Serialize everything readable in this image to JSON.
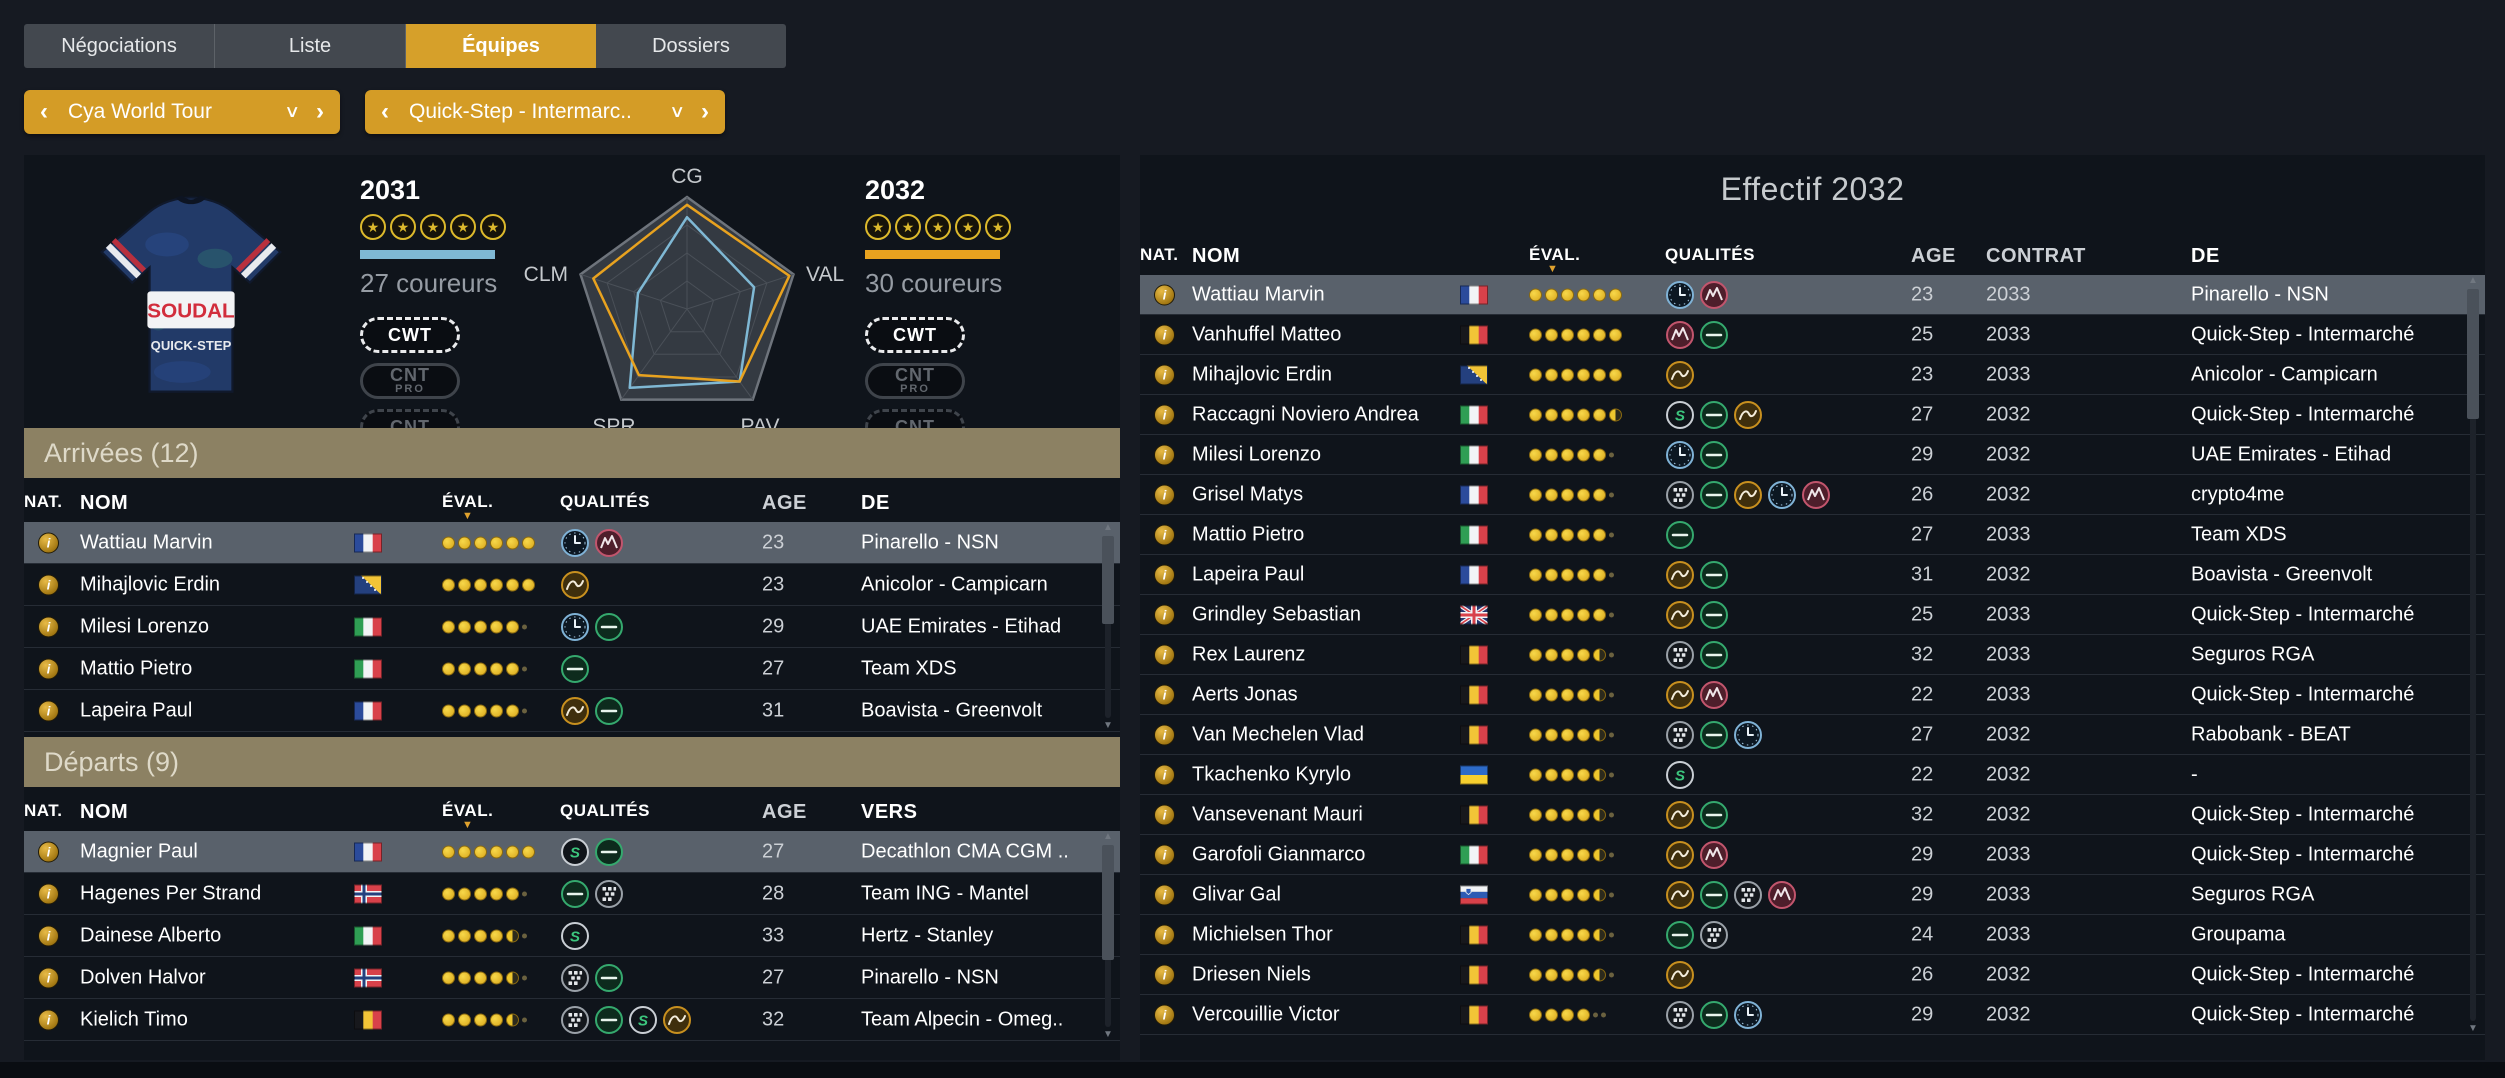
{
  "tabs": [
    {
      "label": "Négociations",
      "active": false
    },
    {
      "label": "Liste",
      "active": false
    },
    {
      "label": "Équipes",
      "active": true
    },
    {
      "label": "Dossiers",
      "active": false
    }
  ],
  "selectors": {
    "division": "Cya World Tour",
    "team": "Quick-Step - Intermarc..",
    "prev_glyph": "‹",
    "next_glyph": "›",
    "chevron_glyph": "∨"
  },
  "team_overview": {
    "jersey": {
      "brand1": "SOUDAL",
      "brand2": "QUICK-STEP"
    },
    "seasons": [
      {
        "id": "season-a",
        "year": "2031",
        "stars": 5,
        "riders": "27 coureurs",
        "accent": "#7fb8d4",
        "badges": [
          {
            "label": "CWT",
            "sub": "",
            "style": "on"
          },
          {
            "label": "CNT",
            "sub": "PRO",
            "style": "pro"
          },
          {
            "label": "CNT",
            "sub": "",
            "style": "off"
          }
        ]
      },
      {
        "id": "season-b",
        "year": "2032",
        "stars": 5,
        "riders": "30 coureurs",
        "accent": "#e8a21f",
        "badges": [
          {
            "label": "CWT",
            "sub": "",
            "style": "on"
          },
          {
            "label": "CNT",
            "sub": "PRO",
            "style": "pro"
          },
          {
            "label": "CNT",
            "sub": "",
            "style": "off"
          }
        ]
      }
    ]
  },
  "chart_data": {
    "type": "radar",
    "axes": [
      "CG",
      "VAL",
      "PAV",
      "SPR",
      "CLM"
    ],
    "levels": 4,
    "series": [
      {
        "name": "2031",
        "color": "#7fb8d4",
        "values": [
          0.82,
          0.63,
          0.8,
          0.87,
          0.46
        ]
      },
      {
        "name": "2032",
        "color": "#e8a21f",
        "values": [
          0.93,
          0.96,
          0.8,
          0.73,
          0.88
        ]
      }
    ]
  },
  "arrivals": {
    "title": "Arrivées (12)",
    "columns": [
      "NOM",
      "NAT.",
      "ÉVAL.",
      "QUALITÉS",
      "AGE",
      "DE"
    ],
    "rows": [
      {
        "name": "Wattiau Marvin",
        "nat": "fr",
        "eval": 6,
        "qual": [
          "chrono",
          "montagne"
        ],
        "age": "23",
        "team": "Pinarello - NSN",
        "selected": true
      },
      {
        "name": "Mihajlovic Erdin",
        "nat": "ba",
        "eval": 6,
        "qual": [
          "vallon"
        ],
        "age": "23",
        "team": "Anicolor - Campicarn"
      },
      {
        "name": "Milesi Lorenzo",
        "nat": "it",
        "eval": 5,
        "qual": [
          "chrono",
          "plaine"
        ],
        "age": "29",
        "team": "UAE Emirates - Etihad"
      },
      {
        "name": "Mattio Pietro",
        "nat": "it",
        "eval": 5,
        "qual": [
          "plaine"
        ],
        "age": "27",
        "team": "Team XDS"
      },
      {
        "name": "Lapeira Paul",
        "nat": "fr",
        "eval": 5,
        "qual": [
          "vallon",
          "plaine"
        ],
        "age": "31",
        "team": "Boavista - Greenvolt"
      }
    ]
  },
  "departures": {
    "title": "Départs (9)",
    "columns": [
      "NOM",
      "NAT.",
      "ÉVAL.",
      "QUALITÉS",
      "AGE",
      "VERS"
    ],
    "rows": [
      {
        "name": "Magnier Paul",
        "nat": "fr",
        "eval": 6,
        "qual": [
          "sprint",
          "plaine"
        ],
        "age": "27",
        "team": "Decathlon CMA CGM ..",
        "selected": true
      },
      {
        "name": "Hagenes Per Strand",
        "nat": "no",
        "eval": 5,
        "qual": [
          "plaine",
          "pave"
        ],
        "age": "28",
        "team": "Team ING - Mantel"
      },
      {
        "name": "Dainese Alberto",
        "nat": "it",
        "eval": 4.5,
        "qual": [
          "sprint"
        ],
        "age": "33",
        "team": "Hertz - Stanley"
      },
      {
        "name": "Dolven Halvor",
        "nat": "no",
        "eval": 4.5,
        "qual": [
          "pave",
          "plaine"
        ],
        "age": "27",
        "team": "Pinarello - NSN"
      },
      {
        "name": "Kielich Timo",
        "nat": "be",
        "eval": 4.5,
        "qual": [
          "pave",
          "plaine",
          "sprint",
          "vallon"
        ],
        "age": "32",
        "team": "Team Alpecin - Omeg.."
      }
    ]
  },
  "roster": {
    "title": "Effectif 2032",
    "columns": [
      "NOM",
      "NAT.",
      "ÉVAL.",
      "QUALITÉS",
      "AGE",
      "CONTRAT",
      "DE"
    ],
    "rows": [
      {
        "name": "Wattiau Marvin",
        "nat": "fr",
        "eval": 6,
        "qual": [
          "chrono",
          "montagne"
        ],
        "age": "23",
        "contract": "2033",
        "team": "Pinarello - NSN",
        "selected": true
      },
      {
        "name": "Vanhuffel Matteo",
        "nat": "be",
        "eval": 6,
        "qual": [
          "montagne",
          "plaine"
        ],
        "age": "25",
        "contract": "2033",
        "team": "Quick-Step - Intermarché"
      },
      {
        "name": "Mihajlovic Erdin",
        "nat": "ba",
        "eval": 6,
        "qual": [
          "vallon"
        ],
        "age": "23",
        "contract": "2033",
        "team": "Anicolor - Campicarn"
      },
      {
        "name": "Raccagni Noviero Andrea",
        "nat": "it",
        "eval": 5.5,
        "qual": [
          "sprint",
          "plaine",
          "vallon"
        ],
        "age": "27",
        "contract": "2032",
        "team": "Quick-Step - Intermarché"
      },
      {
        "name": "Milesi Lorenzo",
        "nat": "it",
        "eval": 5,
        "qual": [
          "chrono",
          "plaine"
        ],
        "age": "29",
        "contract": "2032",
        "team": "UAE Emirates - Etihad"
      },
      {
        "name": "Grisel Matys",
        "nat": "fr",
        "eval": 5,
        "qual": [
          "pave",
          "plaine",
          "vallon",
          "chrono",
          "montagne"
        ],
        "age": "26",
        "contract": "2032",
        "team": "crypto4me"
      },
      {
        "name": "Mattio Pietro",
        "nat": "it",
        "eval": 5,
        "qual": [
          "plaine"
        ],
        "age": "27",
        "contract": "2033",
        "team": "Team XDS"
      },
      {
        "name": "Lapeira Paul",
        "nat": "fr",
        "eval": 5,
        "qual": [
          "vallon",
          "plaine"
        ],
        "age": "31",
        "contract": "2032",
        "team": "Boavista - Greenvolt"
      },
      {
        "name": "Grindley Sebastian",
        "nat": "gb",
        "eval": 5,
        "qual": [
          "vallon",
          "plaine"
        ],
        "age": "25",
        "contract": "2033",
        "team": "Quick-Step - Intermarché"
      },
      {
        "name": "Rex Laurenz",
        "nat": "be",
        "eval": 4.5,
        "qual": [
          "pave",
          "plaine"
        ],
        "age": "32",
        "contract": "2033",
        "team": "Seguros RGA"
      },
      {
        "name": "Aerts Jonas",
        "nat": "be",
        "eval": 4.5,
        "qual": [
          "vallon",
          "montagne"
        ],
        "age": "22",
        "contract": "2033",
        "team": "Quick-Step - Intermarché"
      },
      {
        "name": "Van Mechelen Vlad",
        "nat": "be",
        "eval": 4.5,
        "qual": [
          "pave",
          "plaine",
          "chrono"
        ],
        "age": "27",
        "contract": "2032",
        "team": "Rabobank - BEAT"
      },
      {
        "name": "Tkachenko Kyrylo",
        "nat": "ua",
        "eval": 4.5,
        "qual": [
          "sprint"
        ],
        "age": "22",
        "contract": "2032",
        "team": "-"
      },
      {
        "name": "Vansevenant Mauri",
        "nat": "be",
        "eval": 4.5,
        "qual": [
          "vallon",
          "plaine"
        ],
        "age": "32",
        "contract": "2032",
        "team": "Quick-Step - Intermarché"
      },
      {
        "name": "Garofoli Gianmarco",
        "nat": "it",
        "eval": 4.5,
        "qual": [
          "vallon",
          "montagne"
        ],
        "age": "29",
        "contract": "2033",
        "team": "Quick-Step - Intermarché"
      },
      {
        "name": "Glivar Gal",
        "nat": "si",
        "eval": 4.5,
        "qual": [
          "vallon",
          "plaine",
          "pave",
          "montagne"
        ],
        "age": "29",
        "contract": "2033",
        "team": "Seguros RGA"
      },
      {
        "name": "Michielsen Thor",
        "nat": "be",
        "eval": 4.5,
        "qual": [
          "plaine",
          "pave"
        ],
        "age": "24",
        "contract": "2033",
        "team": "Groupama"
      },
      {
        "name": "Driesen Niels",
        "nat": "be",
        "eval": 4.5,
        "qual": [
          "vallon"
        ],
        "age": "26",
        "contract": "2032",
        "team": "Quick-Step - Intermarché"
      },
      {
        "name": "Vercouillie Victor",
        "nat": "be",
        "eval": 4,
        "qual": [
          "pave",
          "plaine",
          "chrono"
        ],
        "age": "29",
        "contract": "2032",
        "team": "Quick-Step - Intermarché"
      }
    ]
  }
}
